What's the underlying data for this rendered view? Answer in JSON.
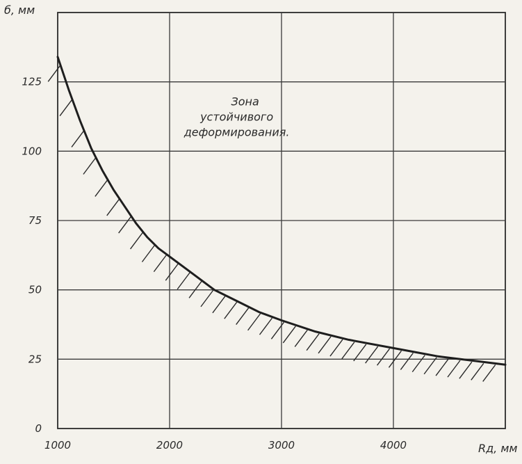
{
  "chart_data": {
    "type": "line",
    "ylabel": "б, мм",
    "xlabel": "Rд, мм",
    "xlim": [
      1000,
      5000
    ],
    "ylim": [
      0,
      150
    ],
    "x_ticks": [
      {
        "value": 1000,
        "label": "1000"
      },
      {
        "value": 2000,
        "label": "2000"
      },
      {
        "value": 3000,
        "label": "3000"
      },
      {
        "value": 4000,
        "label": "4000"
      }
    ],
    "y_ticks": [
      {
        "value": 0,
        "label": "0"
      },
      {
        "value": 25,
        "label": "25"
      },
      {
        "value": 50,
        "label": "50"
      },
      {
        "value": 75,
        "label": "75"
      },
      {
        "value": 100,
        "label": "100"
      },
      {
        "value": 125,
        "label": "125"
      }
    ],
    "grid": true,
    "series": [
      {
        "x": [
          1000,
          1100,
          1200,
          1300,
          1400,
          1500,
          1600,
          1700,
          1800,
          1900,
          2000,
          2200,
          2400,
          2600,
          2800,
          3000,
          3300,
          3600,
          4000,
          4400,
          4800,
          5000
        ],
        "y": [
          134,
          122,
          111,
          101,
          93,
          86,
          80,
          74,
          69,
          65,
          62,
          56,
          50,
          46,
          42,
          39,
          35,
          32,
          29,
          26,
          24,
          23
        ],
        "hatched_side": "below"
      }
    ],
    "annotations": [
      {
        "lines": [
          "Зона",
          "устойчивого",
          "деформирования."
        ],
        "x": 2600,
        "y": 112
      }
    ]
  }
}
